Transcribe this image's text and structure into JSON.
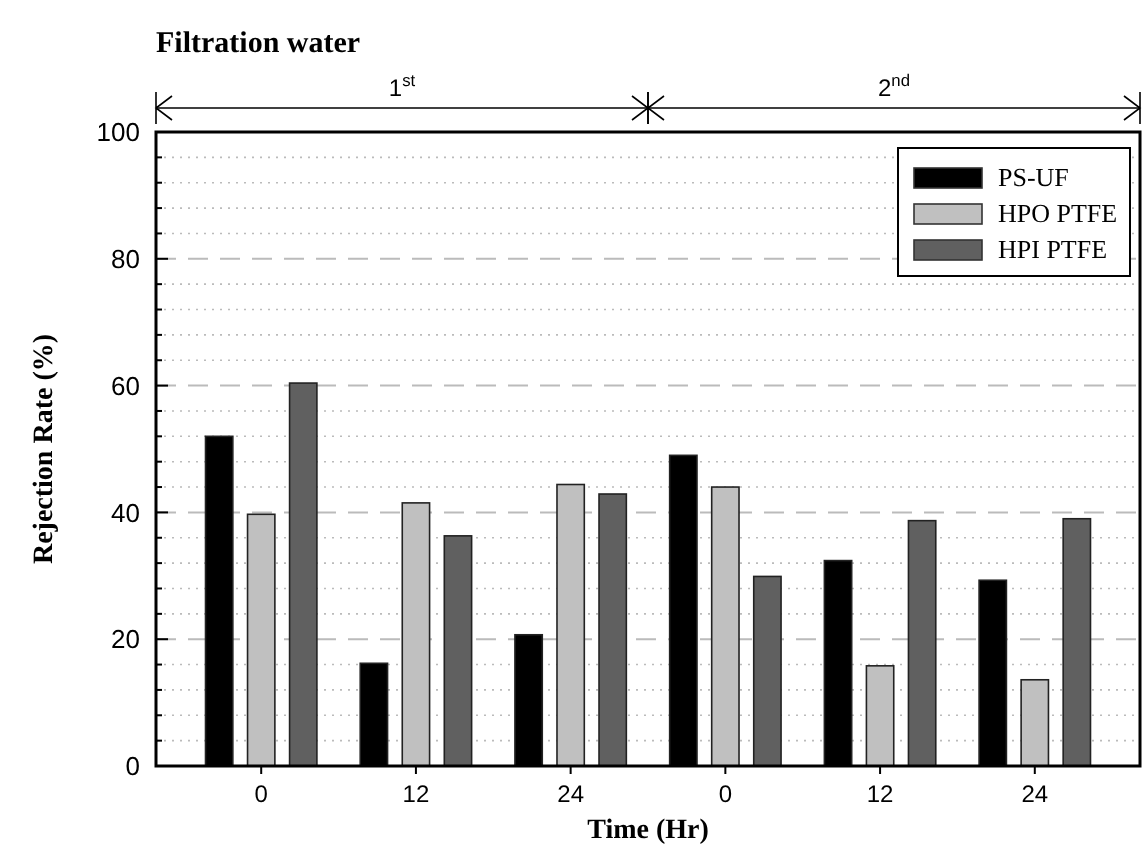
{
  "chart_data": {
    "type": "bar",
    "title": "Filtration water",
    "xlabel": "Time (Hr)",
    "ylabel": "Rejection Rate (%)",
    "categories": [
      "0",
      "12",
      "24",
      "0",
      "12",
      "24"
    ],
    "series": [
      {
        "name": "PS-UF",
        "color": "#000000",
        "values": [
          52.0,
          16.2,
          20.7,
          49.0,
          32.4,
          29.3
        ]
      },
      {
        "name": "HPO PTFE",
        "color": "#c0c0c0",
        "values": [
          39.7,
          41.5,
          44.4,
          44.0,
          15.8,
          13.6
        ]
      },
      {
        "name": "HPI PTFE",
        "color": "#606060",
        "values": [
          60.4,
          36.3,
          42.9,
          29.9,
          38.7,
          39.0
        ]
      }
    ],
    "ylim": [
      0,
      100
    ],
    "yticks": [
      0,
      {
        "value": 4,
        "label": null
      },
      {
        "value": 8,
        "label": null
      },
      {
        "value": 12,
        "label": null
      },
      {
        "value": 16,
        "label": null
      },
      20,
      {
        "value": 24,
        "label": null
      },
      {
        "value": 28,
        "label": null
      },
      {
        "value": 32,
        "label": null
      },
      {
        "value": 36,
        "label": null
      },
      40,
      {
        "value": 44,
        "label": null
      },
      {
        "value": 48,
        "label": null
      },
      {
        "value": 52,
        "label": null
      },
      {
        "value": 56,
        "label": null
      },
      60,
      {
        "value": 64,
        "label": null
      },
      {
        "value": 68,
        "label": null
      },
      {
        "value": 72,
        "label": null
      },
      {
        "value": 76,
        "label": null
      },
      80,
      {
        "value": 84,
        "label": null
      },
      {
        "value": 88,
        "label": null
      },
      {
        "value": 92,
        "label": null
      },
      {
        "value": 96,
        "label": null
      },
      100
    ],
    "grid": "y",
    "legend": "top right",
    "annotations": [
      "1$^{st}$",
      "2$^{nd}$"
    ]
  }
}
